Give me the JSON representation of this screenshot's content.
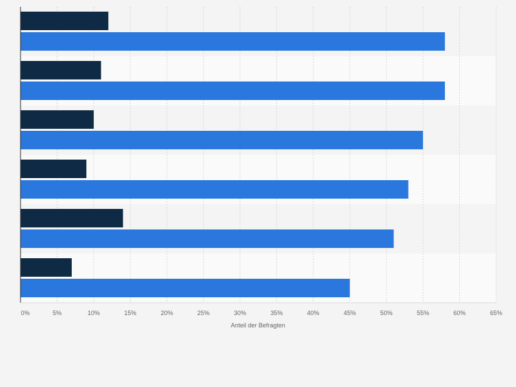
{
  "chart_data": {
    "type": "bar",
    "orientation": "horizontal",
    "categories": [
      "",
      "",
      "",
      "",
      "",
      ""
    ],
    "series": [
      {
        "color": "#0f2a44",
        "values": [
          12,
          11,
          10,
          9,
          14,
          7
        ]
      },
      {
        "color": "#2a78de",
        "values": [
          58,
          58,
          55,
          53,
          51,
          45
        ]
      }
    ],
    "xlabel": "Anteil der Befragten",
    "ylabel": "",
    "xlim": [
      0,
      65
    ],
    "xticks": [
      "0%",
      "5%",
      "10%",
      "15%",
      "20%",
      "25%",
      "30%",
      "35%",
      "40%",
      "45%",
      "50%",
      "55%",
      "60%",
      "65%"
    ],
    "grid": "vertical dashed",
    "legend": "none",
    "colors": {
      "background": "#f4f4f4",
      "band_alt": "#fafafa",
      "grid": "#d8d8d8",
      "axis": "#333333",
      "tick_text": "#666666"
    }
  }
}
